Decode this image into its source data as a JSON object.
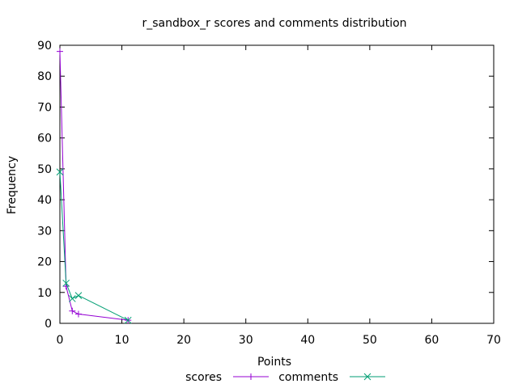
{
  "chart_data": {
    "type": "line",
    "title": "r_sandbox_r scores and comments distribution",
    "xlabel": "Points",
    "ylabel": "Frequency",
    "xlim": [
      0,
      70
    ],
    "ylim": [
      0,
      90
    ],
    "xticks": [
      0,
      10,
      20,
      30,
      40,
      50,
      60,
      70
    ],
    "yticks": [
      0,
      10,
      20,
      30,
      40,
      50,
      60,
      70,
      80,
      90
    ],
    "grid": false,
    "legend_position": "bottom-center",
    "series": [
      {
        "name": "scores",
        "color": "#9400d3",
        "marker": "plus",
        "points": [
          [
            0,
            88
          ],
          [
            1,
            12
          ],
          [
            2,
            4
          ],
          [
            3,
            3
          ],
          [
            11,
            1
          ]
        ]
      },
      {
        "name": "comments",
        "color": "#009e73",
        "marker": "cross",
        "points": [
          [
            0,
            49
          ],
          [
            1,
            13
          ],
          [
            2,
            8
          ],
          [
            3,
            9
          ],
          [
            11,
            1
          ]
        ]
      }
    ]
  }
}
